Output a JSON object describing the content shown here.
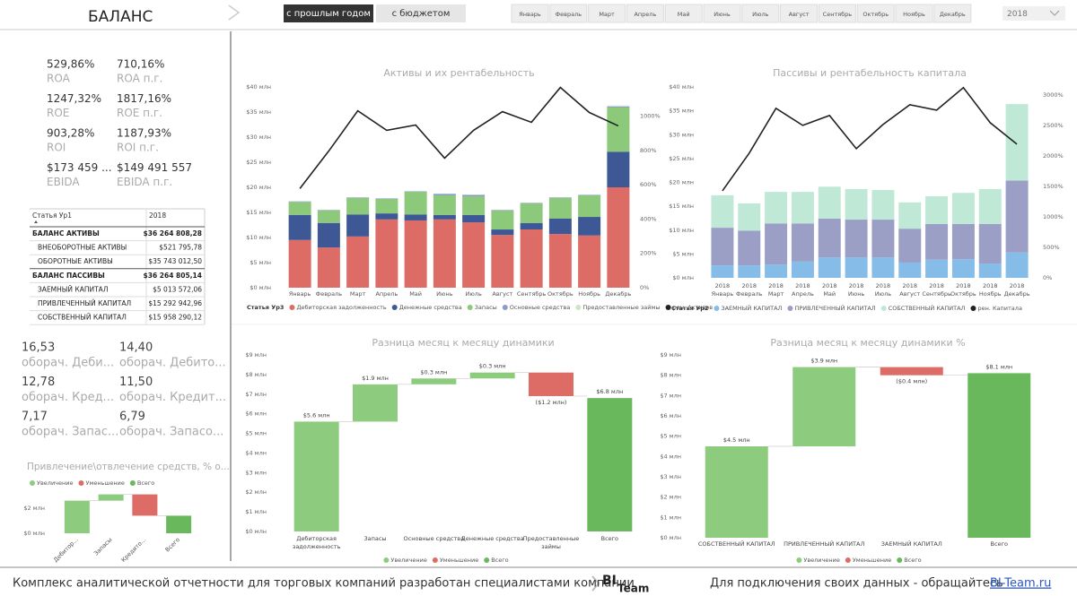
{
  "header": {
    "title": "БАЛАНС",
    "compare": [
      "с прошлым годом",
      "с бюджетом"
    ],
    "compare_active": 0,
    "months": [
      "Январь",
      "Февраль",
      "Март",
      "Апрель",
      "Май",
      "Июнь",
      "Июль",
      "Август",
      "Сентябрь",
      "Октябрь",
      "Ноябрь",
      "Декабрь"
    ],
    "year": "2018"
  },
  "kpis": [
    {
      "value": "529,86%",
      "label": "ROA",
      "prev_value": "710,16%",
      "prev_label": "ROA п.г."
    },
    {
      "value": "1247,32%",
      "label": "ROE",
      "prev_value": "1817,16%",
      "prev_label": "ROE п.г."
    },
    {
      "value": "903,28%",
      "label": "ROI",
      "prev_value": "1187,93%",
      "prev_label": "ROI п.г."
    },
    {
      "value": "$173 459 ...",
      "label": "EBIDA",
      "prev_value": "$149 491 557",
      "prev_label": "EBIDA п.г."
    }
  ],
  "table": {
    "columns": [
      "Статья Ур1",
      "2018"
    ],
    "rows": [
      {
        "name": "БАЛАНС АКТИВЫ",
        "value": "$36 264 808,28",
        "bold": true
      },
      {
        "name": "ВНЕОБОРОТНЫЕ АКТИВЫ",
        "value": "$521 795,78",
        "bold": false
      },
      {
        "name": "ОБОРОТНЫЕ АКТИВЫ",
        "value": "$35 743 012,50",
        "bold": false
      },
      {
        "name": "БАЛАНС ПАССИВЫ",
        "value": "$36 264 805,14",
        "bold": true
      },
      {
        "name": "ЗАЕМНЫЙ КАПИТАЛ",
        "value": "$5 013 572,06",
        "bold": false
      },
      {
        "name": "ПРИВЛЕЧЕННЫЙ КАПИТАЛ",
        "value": "$15 292 942,96",
        "bold": false
      },
      {
        "name": "СОБСТВЕННЫЙ КАПИТАЛ",
        "value": "$15 958 290,12",
        "bold": false
      }
    ]
  },
  "turnover": [
    {
      "value": "16,53",
      "label": "оборач. Деби...",
      "prev_value": "14,40",
      "prev_label": "оборач. Дебито..."
    },
    {
      "value": "12,78",
      "label": "оборач. Кред...",
      "prev_value": "11,50",
      "prev_label": "оборач. Кредит..."
    },
    {
      "value": "7,17",
      "label": "оборач. Запас...",
      "prev_value": "6,79",
      "prev_label": "оборач. Запасо..."
    }
  ],
  "chart_data": [
    {
      "type": "combo",
      "title": "Активы и их рентабельность",
      "legend_title": "Статья Ур3",
      "categories": [
        "Январь",
        "Февраль",
        "Март",
        "Апрель",
        "Май",
        "Июнь",
        "Июль",
        "Август",
        "Сентябрь",
        "Октябрь",
        "Ноябрь",
        "Декабрь"
      ],
      "series": [
        {
          "name": "Дебиторская задолженность",
          "color": "#dd6b66",
          "values": [
            9.5,
            8.0,
            10.2,
            13.6,
            13.4,
            13.6,
            13.0,
            10.5,
            11.6,
            10.7,
            10.4,
            20.0
          ]
        },
        {
          "name": "Денежные средства",
          "color": "#3e5896",
          "values": [
            5.0,
            4.9,
            4.4,
            1.2,
            1.2,
            0.9,
            1.5,
            1.1,
            1.3,
            3.1,
            3.7,
            7.1
          ]
        },
        {
          "name": "Запасы",
          "color": "#8cc97a",
          "values": [
            2.6,
            2.5,
            3.3,
            2.9,
            4.5,
            3.9,
            3.7,
            3.8,
            3.9,
            4.1,
            4.3,
            8.8
          ]
        },
        {
          "name": "Основные средства",
          "color": "#8c9cc8",
          "values": [
            0.1,
            0.1,
            0.1,
            0.1,
            0.1,
            0.3,
            0.3,
            0.1,
            0.1,
            0.1,
            0.1,
            0.2
          ]
        },
        {
          "name": "Предоставленные займы",
          "color": "#c9e7c2",
          "values": [
            0,
            0,
            0,
            0,
            0,
            0,
            0,
            0,
            0,
            0,
            0,
            0.2
          ]
        },
        {
          "name": "рен. Активов",
          "color": "#222222",
          "type": "line",
          "axis": "y2",
          "values": [
            578,
            797,
            1031,
            917,
            948,
            755,
            917,
            1026,
            964,
            1167,
            1021,
            943
          ]
        }
      ],
      "ylim": [
        0,
        40
      ],
      "yticks": [
        {
          "value": 0,
          "label": "$0 млн"
        },
        {
          "value": 5,
          "label": "$5 млн"
        },
        {
          "value": 10,
          "label": "$10 млн"
        },
        {
          "value": 15,
          "label": "$15 млн"
        },
        {
          "value": 20,
          "label": "$20 млн"
        },
        {
          "value": 25,
          "label": "$25 млн"
        },
        {
          "value": 30,
          "label": "$30 млн"
        },
        {
          "value": 35,
          "label": "$35 млн"
        },
        {
          "value": 40,
          "label": "$40 млн"
        }
      ],
      "y2lim": [
        0,
        1170
      ],
      "y2ticks": [
        {
          "value": 0,
          "label": "0%"
        },
        {
          "value": 200,
          "label": "200%"
        },
        {
          "value": 400,
          "label": "400%"
        },
        {
          "value": 600,
          "label": "600%"
        },
        {
          "value": 800,
          "label": "800%"
        },
        {
          "value": 1000,
          "label": "1000%"
        }
      ]
    },
    {
      "type": "combo",
      "title": "Пассивы и рентабельность капитала",
      "legend_title": "Статья Ур2",
      "category_group": "2018",
      "categories": [
        "Январь",
        "Февраль",
        "Март",
        "Апрель",
        "Май",
        "Июнь",
        "Июль",
        "Август",
        "Сентябрь",
        "Октябрь",
        "Ноябрь",
        "Декабрь"
      ],
      "series": [
        {
          "name": "ЗАЕМНЫЙ КАПИТАЛ",
          "color": "#86bde8",
          "values": [
            2.6,
            2.6,
            2.8,
            3.4,
            4.3,
            4.3,
            4.3,
            3.2,
            3.8,
            3.9,
            3.0,
            5.3
          ]
        },
        {
          "name": "ПРИВЛЕЧЕННЫЙ КАПИТАЛ",
          "color": "#9b9fc6",
          "values": [
            7.9,
            7.3,
            8.6,
            8.0,
            8.1,
            7.9,
            7.9,
            7.1,
            7.5,
            7.4,
            8.3,
            15.1
          ]
        },
        {
          "name": "СОБСТВЕННЫЙ КАПИТАЛ",
          "color": "#bfe9d6",
          "values": [
            6.8,
            5.7,
            6.6,
            6.6,
            6.7,
            6.4,
            6.2,
            5.5,
            5.8,
            6.5,
            7.3,
            16.0
          ]
        },
        {
          "name": "рен. Капитала",
          "color": "#222222",
          "type": "line",
          "axis": "y2",
          "values": [
            1426,
            2044,
            2779,
            2500,
            2662,
            2118,
            2515,
            2838,
            2750,
            3118,
            2544,
            2191
          ]
        }
      ],
      "ylim": [
        0,
        40
      ],
      "yticks": [
        {
          "value": 0,
          "label": "$0 млн"
        },
        {
          "value": 5,
          "label": "$5 млн"
        },
        {
          "value": 10,
          "label": "$10 млн"
        },
        {
          "value": 15,
          "label": "$15 млн"
        },
        {
          "value": 20,
          "label": "$20 млн"
        },
        {
          "value": 25,
          "label": "$25 млн"
        },
        {
          "value": 30,
          "label": "$30 млн"
        },
        {
          "value": 35,
          "label": "$35 млн"
        },
        {
          "value": 40,
          "label": "$40 млн"
        }
      ],
      "y2lim": [
        0,
        3130
      ],
      "y2ticks": [
        {
          "value": 0,
          "label": "0%"
        },
        {
          "value": 500,
          "label": "500%"
        },
        {
          "value": 1000,
          "label": "1000%"
        },
        {
          "value": 1500,
          "label": "1500%"
        },
        {
          "value": 2000,
          "label": "2000%"
        },
        {
          "value": 2500,
          "label": "2500%"
        },
        {
          "value": 3000,
          "label": "3000%"
        }
      ]
    },
    {
      "type": "waterfall",
      "title": "Разница месяц к месяцу динамики",
      "categories": [
        "Дебиторская задолженность",
        "Запасы",
        "Основные средства",
        "Денежные средства",
        "Предоставленные займы",
        "Всего"
      ],
      "values": [
        5.6,
        1.9,
        0.3,
        0.3,
        -1.2,
        6.8
      ],
      "value_labels": [
        "$5.6 млн",
        "$1.9 млн",
        "$0.3 млн",
        "$0.3 млн",
        "($1.2 млн)",
        "$6.8 млн"
      ],
      "legend": [
        {
          "name": "Увеличение",
          "color": "#8dcc7e"
        },
        {
          "name": "Уменьшение",
          "color": "#dd6b66"
        },
        {
          "name": "Всего",
          "color": "#6ab85c"
        }
      ],
      "ylim": [
        0,
        9
      ],
      "yticks": [
        {
          "value": 0,
          "label": "$0 млн"
        },
        {
          "value": 1,
          "label": "$1 млн"
        },
        {
          "value": 2,
          "label": "$2 млн"
        },
        {
          "value": 3,
          "label": "$3 млн"
        },
        {
          "value": 4,
          "label": "$4 млн"
        },
        {
          "value": 5,
          "label": "$5 млн"
        },
        {
          "value": 6,
          "label": "$6 млн"
        },
        {
          "value": 7,
          "label": "$7 млн"
        },
        {
          "value": 8,
          "label": "$8 млн"
        },
        {
          "value": 9,
          "label": "$9 млн"
        }
      ]
    },
    {
      "type": "waterfall",
      "title": "Разница месяц к месяцу динамики %",
      "categories": [
        "СОБСТВЕННЫЙ КАПИТАЛ",
        "ПРИВЛЕЧЕННЫЙ КАПИТАЛ",
        "ЗАЕМНЫЙ КАПИТАЛ",
        "Всего"
      ],
      "values": [
        4.5,
        3.9,
        -0.4,
        8.1
      ],
      "value_labels": [
        "$4.5 млн",
        "$3.9 млн",
        "($0.4 млн)",
        "$8.1 млн"
      ],
      "legend": [
        {
          "name": "Увеличение",
          "color": "#8dcc7e"
        },
        {
          "name": "Уменьшение",
          "color": "#dd6b66"
        },
        {
          "name": "Всего",
          "color": "#6ab85c"
        }
      ],
      "ylim": [
        0,
        9
      ],
      "yticks": [
        {
          "value": 0,
          "label": "$0 млн"
        },
        {
          "value": 1,
          "label": "$1 млн"
        },
        {
          "value": 2,
          "label": "$2 млн"
        },
        {
          "value": 3,
          "label": "$3 млн"
        },
        {
          "value": 4,
          "label": "$4 млн"
        },
        {
          "value": 5,
          "label": "$5 млн"
        },
        {
          "value": 6,
          "label": "$6 млн"
        },
        {
          "value": 7,
          "label": "$7 млн"
        },
        {
          "value": 8,
          "label": "$8 млн"
        },
        {
          "value": 9,
          "label": "$9 млн"
        }
      ]
    },
    {
      "type": "waterfall",
      "title": "Привлечение\\отвлечение средств, % о...",
      "categories": [
        "Дебитор...",
        "Запасы",
        "Кредито...",
        "Всего"
      ],
      "values": [
        2.6,
        0.5,
        -1.7,
        1.4
      ],
      "legend": [
        {
          "name": "Увеличение",
          "color": "#8dcc7e"
        },
        {
          "name": "Уменьшение",
          "color": "#dd6b66"
        },
        {
          "name": "Всего",
          "color": "#6ab85c"
        }
      ],
      "ylim": [
        0,
        3.2
      ],
      "yticks": [
        {
          "value": 0,
          "label": "$0 млн"
        },
        {
          "value": 2,
          "label": "$2 млн"
        }
      ]
    }
  ],
  "footer": {
    "text": "Комплекс аналитической отчетности для торговых компаний разработан специалистами компании",
    "logo": [
      "BI",
      "Team"
    ],
    "contact": "Для подключения своих данных - обращайтесь",
    "link": "BI-Team.ru"
  }
}
